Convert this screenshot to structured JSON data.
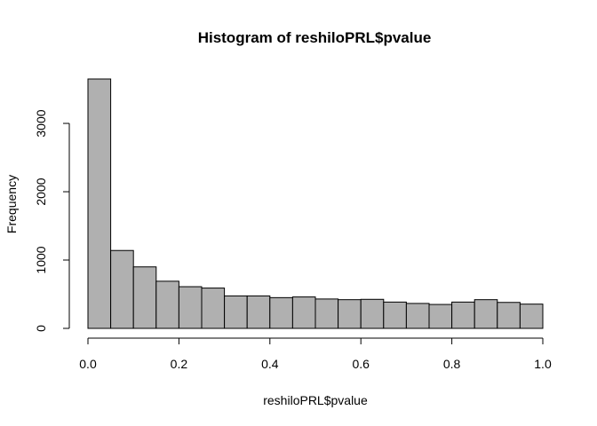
{
  "chart_data": {
    "type": "bar",
    "title": "Histogram of reshiloPRL$pvalue",
    "xlabel": "reshiloPRL$pvalue",
    "ylabel": "Frequency",
    "bin_width": 0.05,
    "bins": [
      0.0,
      0.05,
      0.1,
      0.15,
      0.2,
      0.25,
      0.3,
      0.35,
      0.4,
      0.45,
      0.5,
      0.55,
      0.6,
      0.65,
      0.7,
      0.75,
      0.8,
      0.85,
      0.9,
      0.95
    ],
    "values": [
      3650,
      1140,
      900,
      690,
      610,
      590,
      475,
      475,
      450,
      460,
      430,
      420,
      425,
      385,
      365,
      350,
      385,
      420,
      380,
      355
    ],
    "xlim": [
      0,
      1
    ],
    "ylim": [
      0,
      3650
    ],
    "xticks": [
      "0.0",
      "0.2",
      "0.4",
      "0.6",
      "0.8",
      "1.0"
    ],
    "yticks": [
      "0",
      "1000",
      "2000",
      "3000"
    ],
    "bar_color": "#b0b0b0",
    "grid": false
  }
}
